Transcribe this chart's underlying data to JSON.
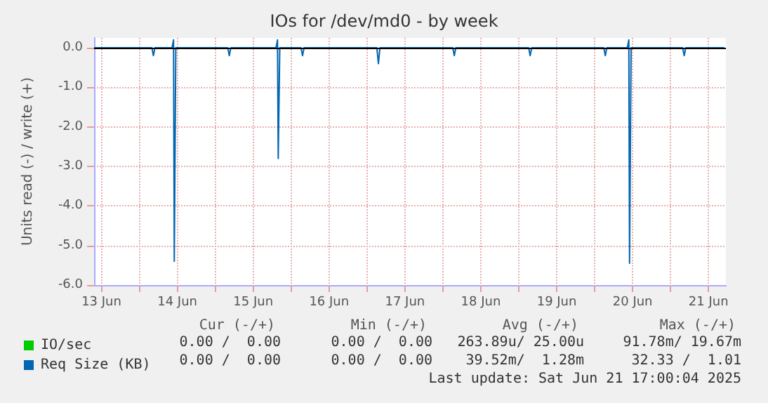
{
  "chart_data": {
    "type": "line",
    "title": "IOs for /dev/md0 - by week",
    "ylabel": "Units read (-) / write (+)",
    "series": [
      {
        "name": "IO/sec",
        "color": "#00cc00"
      },
      {
        "name": "Req Size (KB)",
        "color": "#0066b3",
        "x": [
          "2025-06-13T09:40",
          "2025-06-14T03:58",
          "2025-06-14T04:26",
          "2025-06-14T04:55",
          "2025-06-14T10:19",
          "2025-06-14T10:48",
          "2025-06-14T11:02",
          "2025-06-14T11:31",
          "2025-06-15T03:58",
          "2025-06-15T04:26",
          "2025-06-15T04:55",
          "2025-06-15T19:12",
          "2025-06-15T19:41",
          "2025-06-15T19:55",
          "2025-06-15T20:24",
          "2025-06-16T03:07",
          "2025-06-16T03:36",
          "2025-06-16T04:05",
          "2025-06-17T03:07",
          "2025-06-17T03:36",
          "2025-06-17T04:05",
          "2025-06-18T03:07",
          "2025-06-18T03:36",
          "2025-06-18T04:05",
          "2025-06-19T03:07",
          "2025-06-19T03:36",
          "2025-06-19T04:05",
          "2025-06-20T02:53",
          "2025-06-20T03:22",
          "2025-06-20T03:50",
          "2025-06-20T10:19",
          "2025-06-20T10:48",
          "2025-06-20T11:02",
          "2025-06-20T11:31",
          "2025-06-21T03:50",
          "2025-06-21T04:19",
          "2025-06-21T04:48",
          "2025-06-21T17:00"
        ],
        "values": [
          0,
          0,
          -0.2,
          0,
          0,
          0.2,
          -5.4,
          0,
          0,
          -0.2,
          0,
          0,
          0.2,
          -2.8,
          0,
          0,
          -0.2,
          0,
          0,
          -0.4,
          0,
          0,
          -0.2,
          0,
          0,
          -0.2,
          0,
          0,
          -0.2,
          0,
          0,
          0.2,
          -5.45,
          0,
          0,
          -0.2,
          0,
          0
        ]
      }
    ],
    "xlim": [
      "2025-06-13T09:40",
      "2025-06-21T17:30"
    ],
    "xticks": [
      {
        "value": "2025-06-13T12:00",
        "label": "13 Jun"
      },
      {
        "value": "2025-06-14",
        "label": null
      },
      {
        "value": "2025-06-14T12:00",
        "label": "14 Jun"
      },
      {
        "value": "2025-06-15",
        "label": null
      },
      {
        "value": "2025-06-15T12:00",
        "label": "15 Jun"
      },
      {
        "value": "2025-06-16",
        "label": null
      },
      {
        "value": "2025-06-16T12:00",
        "label": "16 Jun"
      },
      {
        "value": "2025-06-17",
        "label": null
      },
      {
        "value": "2025-06-17T12:00",
        "label": "17 Jun"
      },
      {
        "value": "2025-06-18",
        "label": null
      },
      {
        "value": "2025-06-18T12:00",
        "label": "18 Jun"
      },
      {
        "value": "2025-06-19",
        "label": null
      },
      {
        "value": "2025-06-19T12:00",
        "label": "19 Jun"
      },
      {
        "value": "2025-06-20",
        "label": null
      },
      {
        "value": "2025-06-20T12:00",
        "label": "20 Jun"
      },
      {
        "value": "2025-06-21",
        "label": null
      },
      {
        "value": "2025-06-21T12:00",
        "label": "21 Jun"
      }
    ],
    "ylim": [
      -6,
      0.25
    ],
    "yticks": [
      {
        "value": -6,
        "label": "-6.0"
      },
      {
        "value": -5,
        "label": "-5.0"
      },
      {
        "value": -4,
        "label": "-4.0"
      },
      {
        "value": -3,
        "label": "-3.0"
      },
      {
        "value": -2,
        "label": "-2.0"
      },
      {
        "value": -1,
        "label": "-1.0"
      },
      {
        "value": 0,
        "label": "0.0"
      }
    ],
    "grid": true,
    "legend": "bottom left",
    "ref_lines": [
      {
        "axis": "y",
        "value": 0,
        "color": "#000000"
      }
    ],
    "annotations": [
      "Cur (-/+)",
      "Min (-/+)",
      "Avg (-/+)",
      "Max (-/+)",
      "0.00 /  0.00",
      "0.00 /  0.00",
      "263.89u/ 25.00u",
      "91.78m/ 19.67m",
      "0.00 /  0.00",
      "0.00 /  0.00",
      "39.52m/  1.28m",
      "32.33 /  1.01",
      "Last update: Sat Jun 21 17:00:04 2025"
    ]
  }
}
